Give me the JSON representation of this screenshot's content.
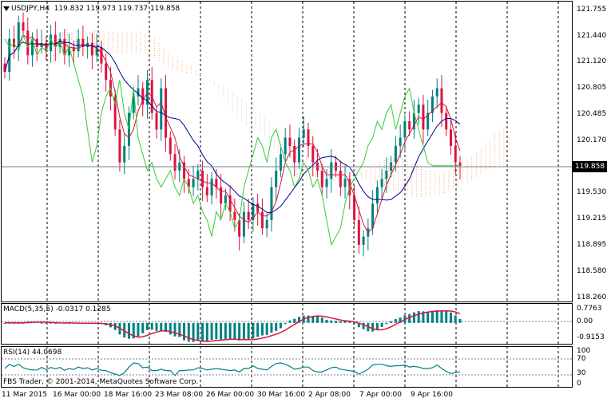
{
  "main": {
    "symbol_label": "USDJPY,H4",
    "ohlc": "119.832 119.973 119.737 119.858",
    "price_axis": [
      "121.755",
      "121.440",
      "121.120",
      "120.805",
      "120.485",
      "120.170",
      "119.858",
      "119.530",
      "119.215",
      "118.895",
      "118.580",
      "118.260"
    ],
    "current_price": "119.858"
  },
  "macd": {
    "label": "MACD(5,35,5) -0.0317 0.1285",
    "axis": [
      "0.7763",
      "0.00",
      "-0.9153"
    ]
  },
  "rsi": {
    "label": "RSI(14) 44.0698",
    "axis": [
      "100",
      "70",
      "30",
      "0"
    ]
  },
  "footer": {
    "copyright": "FBS Trader, © 2001-2014, MetaQuotes Software Corp."
  },
  "time_axis": [
    "11 Mar 2015",
    "16 Mar 00:00",
    "18 Mar 16:00",
    "23 Mar 08:00",
    "26 Mar 00:00",
    "30 Mar 16:00",
    "2 Apr 08:00",
    "7 Apr 00:00",
    "9 Apr 16:00"
  ],
  "colors": {
    "bull": "#008080",
    "bear": "#dc143c",
    "tenkan": "#dc143c",
    "kijun": "#00008b",
    "chikou": "#32cd32",
    "cloud": "#f4a460",
    "cloud2": "#d8bfd8",
    "grid": "#000000"
  },
  "chart_data": {
    "type": "candlestick",
    "symbol": "USDJPY",
    "timeframe": "H4",
    "last_bar": {
      "open": 119.832,
      "high": 119.973,
      "low": 119.737,
      "close": 119.858
    },
    "ylim": [
      118.26,
      121.755
    ],
    "closes": [
      121.0,
      121.4,
      121.3,
      121.6,
      121.5,
      121.2,
      121.4,
      121.3,
      121.35,
      121.25,
      121.45,
      121.3,
      121.4,
      121.2,
      121.3,
      121.25,
      121.4,
      121.3,
      121.35,
      121.2,
      121.3,
      121.1,
      120.9,
      120.7,
      120.3,
      119.9,
      120.1,
      120.5,
      120.7,
      120.8,
      120.6,
      120.9,
      120.5,
      120.3,
      120.8,
      120.2,
      120.0,
      119.8,
      119.9,
      119.7,
      119.6,
      119.7,
      119.8,
      119.6,
      119.5,
      119.7,
      119.6,
      119.4,
      119.5,
      119.3,
      119.2,
      119.0,
      119.3,
      119.2,
      119.4,
      119.3,
      119.1,
      119.2,
      119.6,
      119.8,
      120.0,
      120.2,
      120.1,
      119.9,
      120.2,
      120.3,
      120.1,
      119.9,
      119.8,
      119.6,
      119.7,
      119.9,
      119.8,
      119.6,
      119.7,
      119.5,
      119.2,
      118.9,
      119.0,
      119.1,
      119.4,
      119.6,
      119.7,
      119.8,
      119.9,
      120.1,
      120.2,
      120.4,
      120.3,
      120.5,
      120.6,
      120.3,
      120.5,
      120.7,
      120.8,
      120.5,
      120.3,
      120.1,
      119.9,
      119.86
    ],
    "macd": {
      "value": -0.0317,
      "signal": 0.1285,
      "ylim": [
        -0.9153,
        0.7763
      ]
    },
    "rsi": {
      "value": 44.0698,
      "levels": [
        70,
        30
      ],
      "ylim": [
        0,
        100
      ]
    },
    "time_labels": [
      "11 Mar 2015",
      "16 Mar 00:00",
      "18 Mar 16:00",
      "23 Mar 08:00",
      "26 Mar 00:00",
      "30 Mar 16:00",
      "2 Apr 08:00",
      "7 Apr 00:00",
      "9 Apr 16:00"
    ]
  }
}
